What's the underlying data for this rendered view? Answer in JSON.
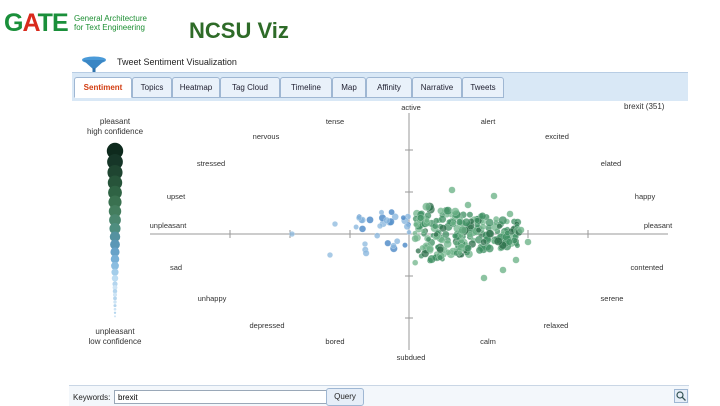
{
  "header": {
    "logo_text": "GATE",
    "logo_tagline": [
      "General Architecture",
      "for Text Engineering"
    ],
    "page_title": "NCSU Viz"
  },
  "app": {
    "title": "Tweet Sentiment Visualization",
    "tabs": [
      {
        "label": "Sentiment",
        "active": true
      },
      {
        "label": "Topics",
        "active": false
      },
      {
        "label": "Heatmap",
        "active": false
      },
      {
        "label": "Tag Cloud",
        "active": false
      },
      {
        "label": "Timeline",
        "active": false
      },
      {
        "label": "Map",
        "active": false
      },
      {
        "label": "Affinity",
        "active": false
      },
      {
        "label": "Narrative",
        "active": false
      },
      {
        "label": "Tweets",
        "active": false
      }
    ],
    "dataset_label": "brexit (351)"
  },
  "scale": {
    "top_label": [
      "pleasant",
      "high confidence"
    ],
    "bottom_label": [
      "unpleasant",
      "low confidence"
    ],
    "colors": [
      "#0e2a1d",
      "#163628",
      "#1f4531",
      "#27543a",
      "#2f6344",
      "#3a7150",
      "#447d5e",
      "#4b866f",
      "#4f8e80",
      "#5592a0",
      "#5b97b6",
      "#67a2c8",
      "#78b0d6",
      "#8bbde0",
      "#a3cdea",
      "#bcdcf2"
    ]
  },
  "plot": {
    "emotions": {
      "active": "active",
      "tense": "tense",
      "alert": "alert",
      "nervous": "nervous",
      "excited": "excited",
      "stressed": "stressed",
      "elated": "elated",
      "upset": "upset",
      "happy": "happy",
      "unpleasant": "unpleasant",
      "pleasant": "pleasant",
      "sad": "sad",
      "contented": "contented",
      "unhappy": "unhappy",
      "serene": "serene",
      "depressed": "depressed",
      "relaxed": "relaxed",
      "bored": "bored",
      "calm": "calm",
      "subdued": "subdued"
    },
    "colors": {
      "green": "#3d8f62",
      "light_green": "#6fb48a",
      "dark_green": "#2c6e4a",
      "blue": "#4a87c6",
      "light_blue": "#8bb8de",
      "axis": "#999999"
    }
  },
  "bottom": {
    "keywords_label": "Keywords:",
    "keywords_value": "brexit",
    "query_label": "Query"
  }
}
